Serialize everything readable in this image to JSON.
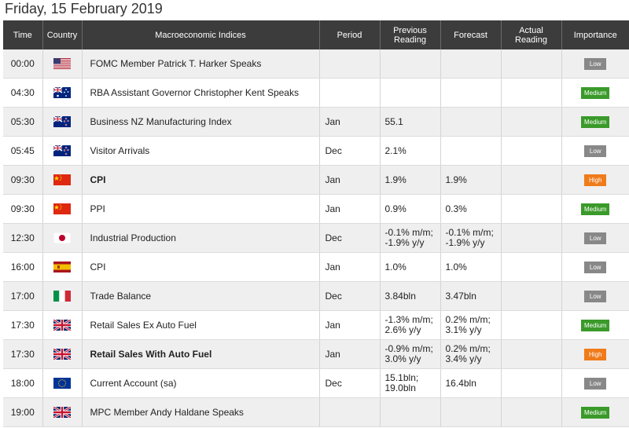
{
  "page": {
    "date_title": "Friday, 15 February 2019"
  },
  "columns": {
    "time": "Time",
    "country": "Country",
    "indices": "Macroeconomic Indices",
    "period": "Period",
    "previous_1": "Previous",
    "previous_2": "Reading",
    "forecast": "Forecast",
    "actual_1": "Actual",
    "actual_2": "Reading",
    "importance": "Importance"
  },
  "colors": {
    "low": "#888888",
    "medium": "#3a9a2a",
    "high": "#f07b1a",
    "header_bg": "#3c3c3c"
  },
  "rows": [
    {
      "time": "00:00",
      "country": "us-flag-icon",
      "name": "FOMC Member Patrick T. Harker Speaks",
      "bold": false,
      "period": "",
      "previous": [],
      "forecast": [],
      "actual": "",
      "importance": "Low",
      "level": "low"
    },
    {
      "time": "04:30",
      "country": "au-flag-icon",
      "name": "RBA Assistant Governor Christopher Kent Speaks",
      "bold": false,
      "period": "",
      "previous": [],
      "forecast": [],
      "actual": "",
      "importance": "Medium",
      "level": "medium"
    },
    {
      "time": "05:30",
      "country": "nz-flag-icon",
      "name": "Business NZ Manufacturing Index",
      "bold": false,
      "period": "Jan",
      "previous": [
        "55.1"
      ],
      "forecast": [],
      "actual": "",
      "importance": "Medium",
      "level": "medium"
    },
    {
      "time": "05:45",
      "country": "nz-flag-icon",
      "name": "Visitor Arrivals",
      "bold": false,
      "period": "Dec",
      "previous": [
        "2.1%"
      ],
      "forecast": [],
      "actual": "",
      "importance": "Low",
      "level": "low"
    },
    {
      "time": "09:30",
      "country": "cn-flag-icon",
      "name": "CPI",
      "bold": true,
      "period": "Jan",
      "previous": [
        "1.9%"
      ],
      "forecast": [
        "1.9%"
      ],
      "actual": "",
      "importance": "High",
      "level": "high"
    },
    {
      "time": "09:30",
      "country": "cn-flag-icon",
      "name": "PPI",
      "bold": false,
      "period": "Jan",
      "previous": [
        "0.9%"
      ],
      "forecast": [
        "0.3%"
      ],
      "actual": "",
      "importance": "Medium",
      "level": "medium"
    },
    {
      "time": "12:30",
      "country": "jp-flag-icon",
      "name": "Industrial Production",
      "bold": false,
      "period": "Dec",
      "previous": [
        "-0.1% m/m;",
        "-1.9% y/y"
      ],
      "forecast": [
        "-0.1% m/m;",
        "-1.9% y/y"
      ],
      "actual": "",
      "importance": "Low",
      "level": "low"
    },
    {
      "time": "16:00",
      "country": "es-flag-icon",
      "name": "CPI",
      "bold": false,
      "period": "Jan",
      "previous": [
        "1.0%"
      ],
      "forecast": [
        "1.0%"
      ],
      "actual": "",
      "importance": "Low",
      "level": "low"
    },
    {
      "time": "17:00",
      "country": "it-flag-icon",
      "name": "Trade Balance",
      "bold": false,
      "period": "Dec",
      "previous": [
        "3.84bln"
      ],
      "forecast": [
        "3.47bln"
      ],
      "actual": "",
      "importance": "Low",
      "level": "low"
    },
    {
      "time": "17:30",
      "country": "gb-flag-icon",
      "name": "Retail Sales Ex Auto Fuel",
      "bold": false,
      "period": "Jan",
      "previous": [
        "-1.3% m/m;",
        "2.6% y/y"
      ],
      "forecast": [
        "0.2% m/m;",
        "3.1% y/y"
      ],
      "actual": "",
      "importance": "Medium",
      "level": "medium"
    },
    {
      "time": "17:30",
      "country": "gb-flag-icon",
      "name": "Retail Sales With Auto Fuel",
      "bold": true,
      "period": "Jan",
      "previous": [
        "-0.9% m/m;",
        "3.0% y/y"
      ],
      "forecast": [
        "0.2% m/m;",
        "3.4% y/y"
      ],
      "actual": "",
      "importance": "High",
      "level": "high"
    },
    {
      "time": "18:00",
      "country": "eu-flag-icon",
      "name": "Current Account (sa)",
      "bold": false,
      "period": "Dec",
      "previous": [
        "15.1bln;",
        "19.0bln"
      ],
      "forecast": [
        "16.4bln"
      ],
      "actual": "",
      "importance": "Low",
      "level": "low"
    },
    {
      "time": "19:00",
      "country": "gb-flag-icon",
      "name": "MPC Member Andy Haldane Speaks",
      "bold": false,
      "period": "",
      "previous": [],
      "forecast": [],
      "actual": "",
      "importance": "Medium",
      "level": "medium"
    }
  ]
}
